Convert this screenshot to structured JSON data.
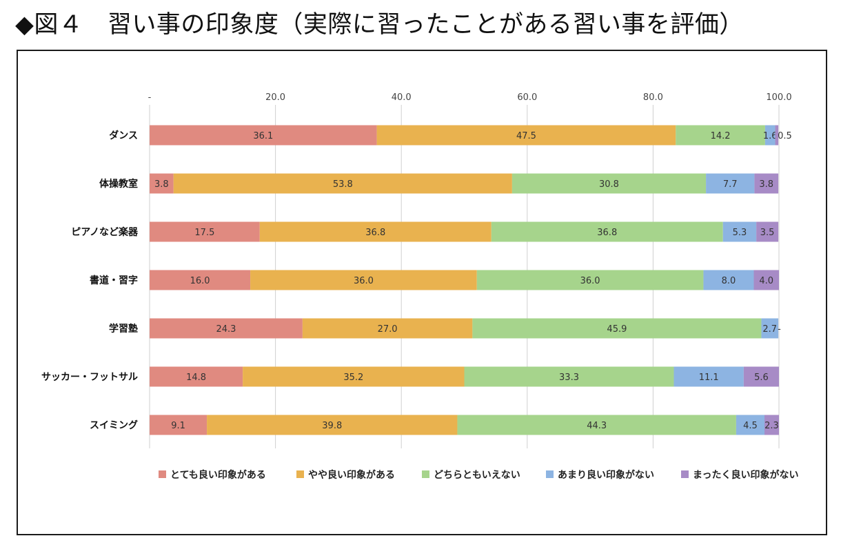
{
  "title": "◆図４　習い事の印象度（実際に習ったことがある習い事を評価）",
  "colors": {
    "series": [
      "#e08a80",
      "#e9b24f",
      "#a6d48c",
      "#8db4e2",
      "#a78bc6"
    ],
    "grid": "#cfcfcf",
    "frame": "#1a1a1a"
  },
  "chart_data": {
    "type": "bar",
    "orientation": "horizontal",
    "stacked": true,
    "title": "",
    "xlabel": "",
    "ylabel": "",
    "xlim": [
      0,
      100
    ],
    "xticks": [
      0,
      20,
      40,
      60,
      80,
      100
    ],
    "xtick_labels": [
      "-",
      "20.0",
      "40.0",
      "60.0",
      "80.0",
      "100.0"
    ],
    "grid": true,
    "legend_position": "bottom",
    "categories": [
      "ダンス",
      "体操教室",
      "ピアノなど楽器",
      "書道・習字",
      "学習塾",
      "サッカー・フットサル",
      "スイミング"
    ],
    "series": [
      {
        "name": "とても良い印象がある",
        "values": [
          36.1,
          3.8,
          17.5,
          16.0,
          24.3,
          14.8,
          9.1
        ],
        "labels": [
          "36.1",
          "3.8",
          "17.5",
          "16.0",
          "24.3",
          "14.8",
          "9.1"
        ]
      },
      {
        "name": "やや良い印象がある",
        "values": [
          47.5,
          53.8,
          36.8,
          36.0,
          27.0,
          35.2,
          39.8
        ],
        "labels": [
          "47.5",
          "53.8",
          "36.8",
          "36.0",
          "27.0",
          "35.2",
          "39.8"
        ]
      },
      {
        "name": "どちらともいえない",
        "values": [
          14.2,
          30.8,
          36.8,
          36.0,
          45.9,
          33.3,
          44.3
        ],
        "labels": [
          "14.2",
          "30.8",
          "36.8",
          "36.0",
          "45.9",
          "33.3",
          "44.3"
        ]
      },
      {
        "name": "あまり良い印象がない",
        "values": [
          1.6,
          7.7,
          5.3,
          8.0,
          2.7,
          11.1,
          4.5
        ],
        "labels": [
          "1.6",
          "7.7",
          "5.3",
          "8.0",
          "2.7",
          "11.1",
          "4.5"
        ]
      },
      {
        "name": "まったく良い印象がない",
        "values": [
          0.5,
          3.8,
          3.5,
          4.0,
          0,
          5.6,
          2.3
        ],
        "labels": [
          "0.5",
          "3.8",
          "3.5",
          "4.0",
          "-",
          "5.6",
          "2.3"
        ]
      }
    ]
  }
}
